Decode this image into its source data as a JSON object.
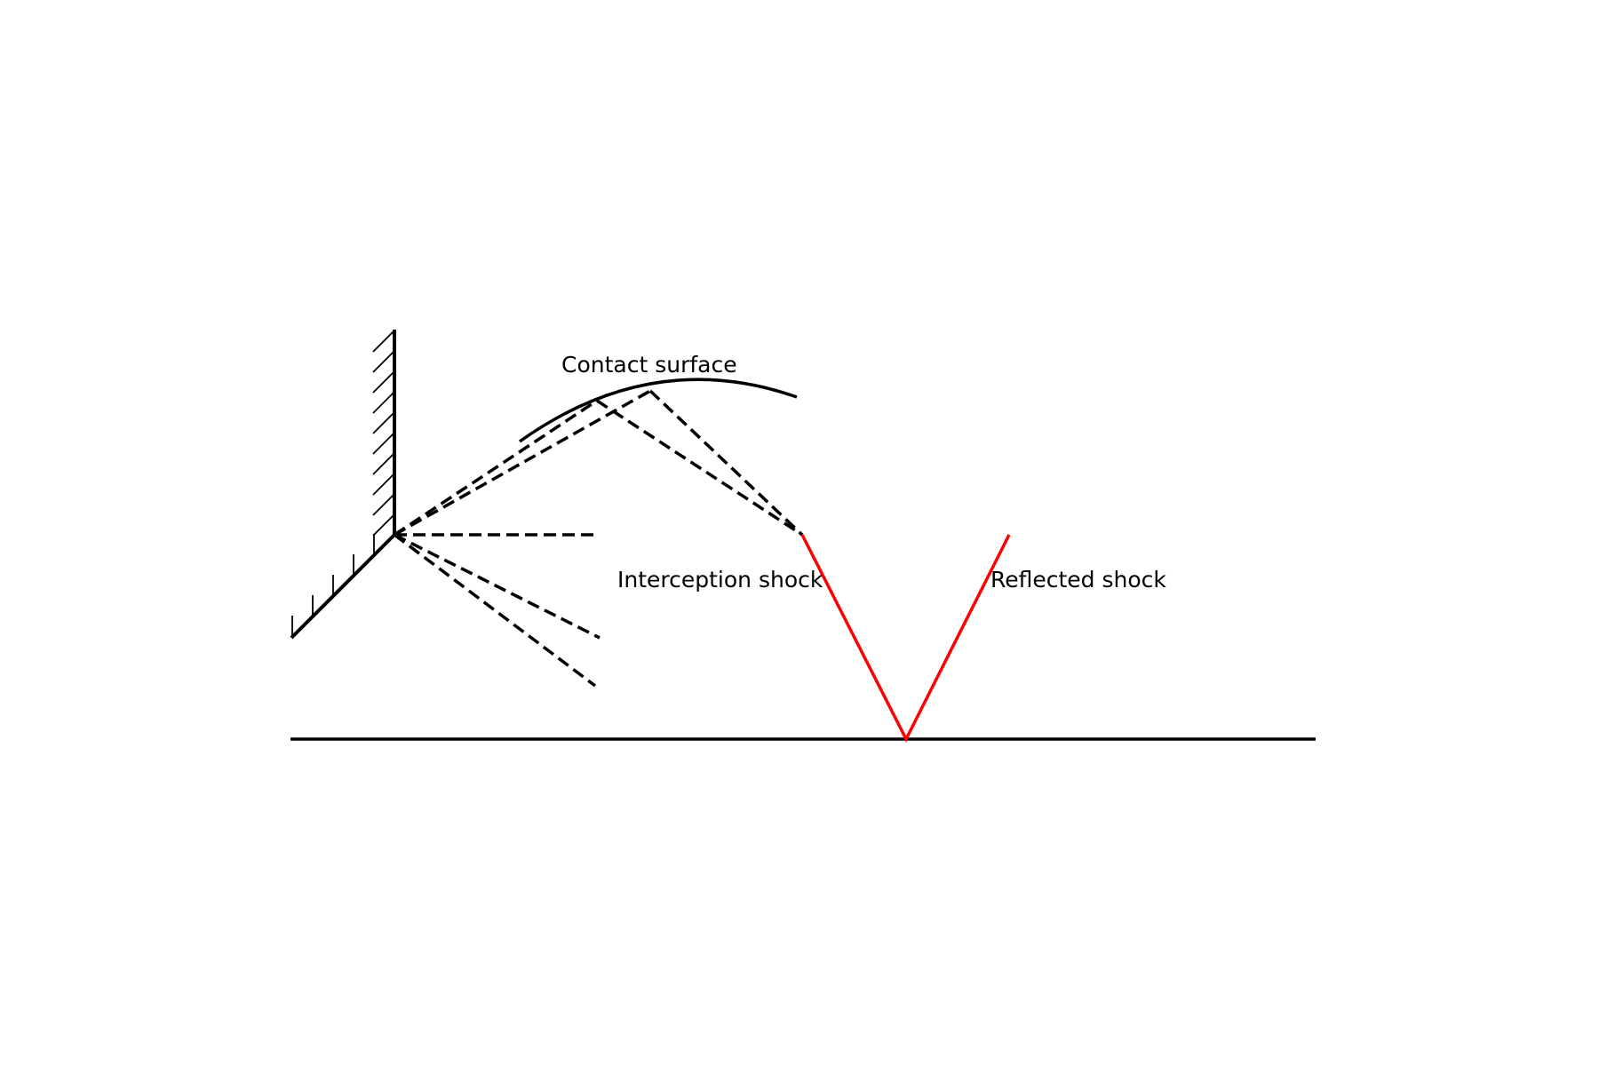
{
  "labels": {
    "contact_surface": "Contact surface",
    "interception_shock": "Interception shock",
    "reflected_shock": "Reflected shock"
  },
  "colors": {
    "ink": "#000000",
    "reflected": "#ff0000",
    "background": "#ffffff"
  }
}
